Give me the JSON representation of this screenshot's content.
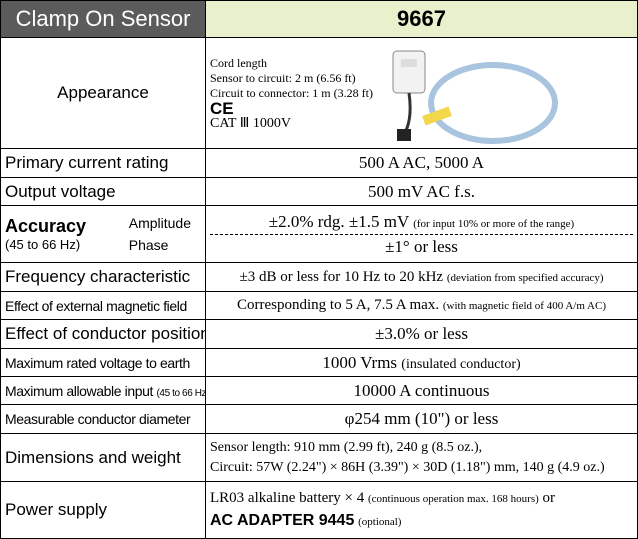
{
  "header": {
    "title": "Clamp On Sensor",
    "model": "9667"
  },
  "appearance": {
    "label": "Appearance",
    "lines": [
      "Cord length",
      "Sensor to circuit: 2 m (6.56 ft)",
      "Circuit to connector: 1 m (3.28 ft)"
    ],
    "mark": "CE",
    "category": "CAT Ⅲ 1000V"
  },
  "rows": [
    {
      "label": "Primary current rating",
      "value": "500 A AC, 5000 A"
    },
    {
      "label": "Output voltage",
      "value": "500 mV AC f.s."
    },
    {
      "label": "Accuracy",
      "range": "(45 to 66 Hz)",
      "amplitude_label": "Amplitude",
      "amplitude": "±2.0% rdg. ±1.5 mV",
      "amplitude_note": "(for input 10% or more of the range)",
      "phase_label": "Phase",
      "phase": "±1° or less"
    },
    {
      "label": "Frequency characteristic",
      "value": "±3 dB or less for 10 Hz to 20 kHz",
      "note": "(deviation from specified accuracy)"
    },
    {
      "label": "Effect of external magnetic field",
      "value": "Corresponding to 5 A, 7.5 A max.",
      "note": "(with magnetic field of 400 A/m AC)"
    },
    {
      "label": "Effect of conductor position",
      "value": "±3.0% or less"
    },
    {
      "label": "Maximum rated voltage to earth",
      "value": "1000 Vrms",
      "note": "(insulated conductor)"
    },
    {
      "label": "Maximum allowable input",
      "label_note": "(45 to 66 Hz)",
      "value": "10000 A continuous"
    },
    {
      "label": "Measurable conductor diameter",
      "value": "φ254 mm (10\") or less"
    },
    {
      "label": "Dimensions and weight",
      "lines": [
        "Sensor length: 910 mm (2.99 ft), 240 g (8.5 oz.),",
        "Circuit: 57W (2.24\") × 86H (3.39\") × 30D (1.18\") mm, 140 g (4.9 oz.)"
      ]
    },
    {
      "label": "Power supply",
      "value": "LR03 alkaline battery × 4",
      "note": "(continuous operation max. 168 hours)",
      "joiner": "or",
      "adapter": "AC ADAPTER 9445",
      "adapter_note": "(optional)"
    }
  ]
}
